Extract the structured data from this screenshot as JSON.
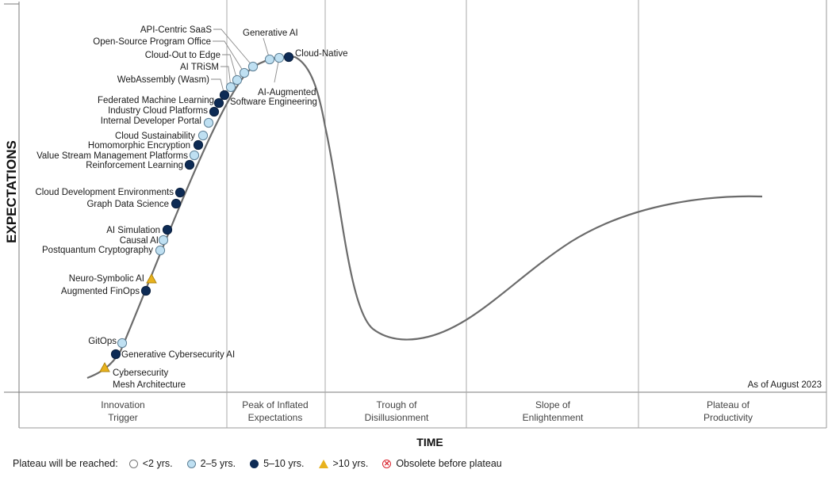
{
  "chart_data": {
    "type": "scatter",
    "title": "",
    "xlabel": "TIME",
    "ylabel": "EXPECTATIONS",
    "as_of": "As of August 2023",
    "phases": [
      "Innovation\nTrigger",
      "Peak of Inflated\nExpectations",
      "Trough of\nDisillusionment",
      "Slope of\nEnlightenment",
      "Plateau of\nProductivity"
    ],
    "legend_title": "Plateau will be reached:",
    "legend": [
      {
        "key": "lt2",
        "label": "<2 yrs.",
        "color": "#ffffff"
      },
      {
        "key": "2to5",
        "label": "2–5 yrs.",
        "color": "#bfe0f2"
      },
      {
        "key": "5to10",
        "label": "5–10 yrs.",
        "color": "#0d2b55"
      },
      {
        "key": "gt10",
        "label": ">10 yrs.",
        "color": "#e8b21d"
      },
      {
        "key": "obsolete",
        "label": "Obsolete before plateau",
        "color": "#d9232d"
      }
    ],
    "technologies": [
      {
        "name": "Cybersecurity\nMesh Architecture",
        "category": "gt10"
      },
      {
        "name": "Generative Cybersecurity AI",
        "category": "5to10"
      },
      {
        "name": "GitOps",
        "category": "2to5"
      },
      {
        "name": "Augmented FinOps",
        "category": "5to10"
      },
      {
        "name": "Neuro-Symbolic AI",
        "category": "gt10"
      },
      {
        "name": "Postquantum Cryptography",
        "category": "2to5"
      },
      {
        "name": "Causal AI",
        "category": "2to5"
      },
      {
        "name": "AI Simulation",
        "category": "5to10"
      },
      {
        "name": "Graph Data Science",
        "category": "5to10"
      },
      {
        "name": "Cloud Development Environments",
        "category": "5to10"
      },
      {
        "name": "Reinforcement Learning",
        "category": "5to10"
      },
      {
        "name": "Value Stream Management Platforms",
        "category": "2to5"
      },
      {
        "name": "Homomorphic Encryption",
        "category": "5to10"
      },
      {
        "name": "Cloud Sustainability",
        "category": "2to5"
      },
      {
        "name": "Internal Developer Portal",
        "category": "2to5"
      },
      {
        "name": "Industry Cloud Platforms",
        "category": "5to10"
      },
      {
        "name": "Federated Machine Learning",
        "category": "5to10"
      },
      {
        "name": "WebAssembly (Wasm)",
        "category": "5to10"
      },
      {
        "name": "AI TRiSM",
        "category": "2to5"
      },
      {
        "name": "Cloud-Out to Edge",
        "category": "2to5"
      },
      {
        "name": "Open-Source Program Office",
        "category": "2to5"
      },
      {
        "name": "API-Centric SaaS",
        "category": "2to5"
      },
      {
        "name": "Generative AI",
        "category": "2to5"
      },
      {
        "name": "AI-Augmented\nSoftware Engineering",
        "category": "2to5"
      },
      {
        "name": "Cloud-Native",
        "category": "5to10"
      }
    ]
  }
}
